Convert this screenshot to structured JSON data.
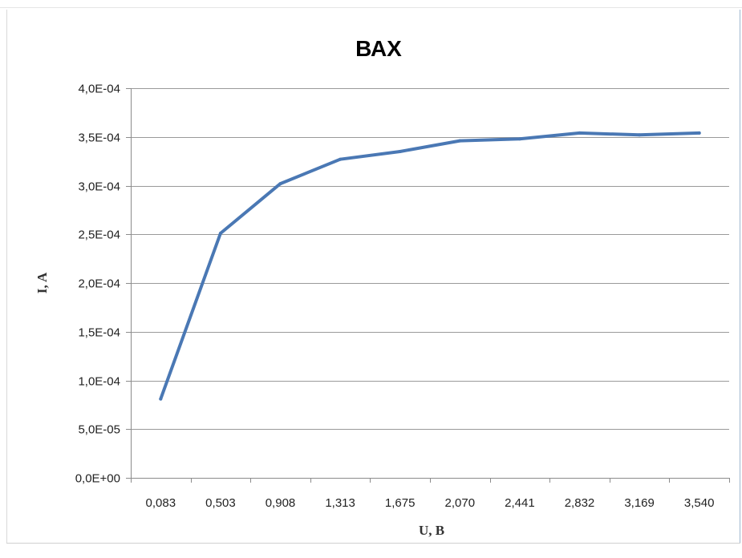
{
  "chart_data": {
    "type": "line",
    "title": "ВАХ",
    "xlabel": "U, В",
    "ylabel": "I, A",
    "categories": [
      "0,083",
      "0,503",
      "0,908",
      "1,313",
      "1,675",
      "2,070",
      "2,441",
      "2,832",
      "3,169",
      "3,540"
    ],
    "series": [
      {
        "values": [
          8.1e-05,
          0.000251,
          0.000302,
          0.000327,
          0.000335,
          0.000346,
          0.000348,
          0.000354,
          0.000352,
          0.000354
        ],
        "color": "#4a78b4"
      }
    ],
    "ylim": [
      0,
      0.0004
    ],
    "y_ticks": [
      {
        "value": 0,
        "label": "0,0E+00"
      },
      {
        "value": 5e-05,
        "label": "5,0E-05"
      },
      {
        "value": 0.0001,
        "label": "1,0E-04"
      },
      {
        "value": 0.00015,
        "label": "1,5E-04"
      },
      {
        "value": 0.0002,
        "label": "2,0E-04"
      },
      {
        "value": 0.00025,
        "label": "2,5E-04"
      },
      {
        "value": 0.0003,
        "label": "3,0E-04"
      },
      {
        "value": 0.00035,
        "label": "3,5E-04"
      },
      {
        "value": 0.0004,
        "label": "4,0E-04"
      }
    ],
    "grid": "horizontal",
    "legend": "none"
  },
  "colors": {
    "grid": "#9a9a9a",
    "axis": "#8c8c8c",
    "line": "#4a78b4"
  }
}
